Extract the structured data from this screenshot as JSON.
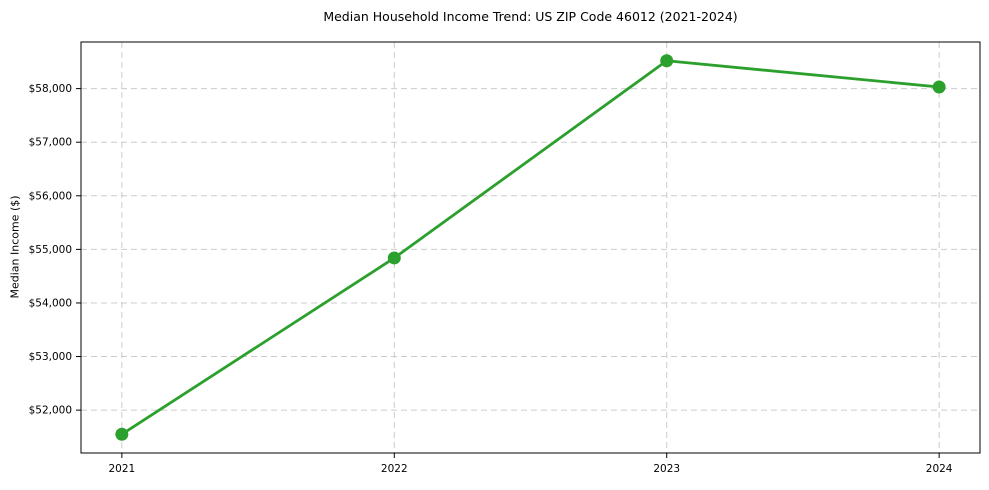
{
  "chart_data": {
    "type": "line",
    "title": "Median Household Income Trend: US ZIP Code 46012 (2021-2024)",
    "xlabel": "",
    "ylabel": "Median Income ($)",
    "x": [
      2021,
      2022,
      2023,
      2024
    ],
    "series": [
      {
        "values": [
          51550,
          54840,
          58520,
          58030
        ],
        "color": "#2ca02c",
        "marker": "circle",
        "line_width": 2.8,
        "marker_radius": 6.5
      }
    ],
    "xticks": [
      2021,
      2022,
      2023,
      2024
    ],
    "xtick_labels": [
      "2021",
      "2022",
      "2023",
      "2024"
    ],
    "yticks": [
      52000,
      53000,
      54000,
      55000,
      56000,
      57000,
      58000
    ],
    "ytick_labels": [
      "$52,000",
      "$53,000",
      "$54,000",
      "$55,000",
      "$56,000",
      "$57,000",
      "$58,000"
    ],
    "xlim": [
      2020.85,
      2024.15
    ],
    "ylim": [
      51200,
      58870
    ],
    "grid": true,
    "grid_style": "dashed",
    "grid_color": "#cccccc",
    "spine_color": "#000000",
    "background": "#ffffff",
    "legend_position": "none"
  }
}
